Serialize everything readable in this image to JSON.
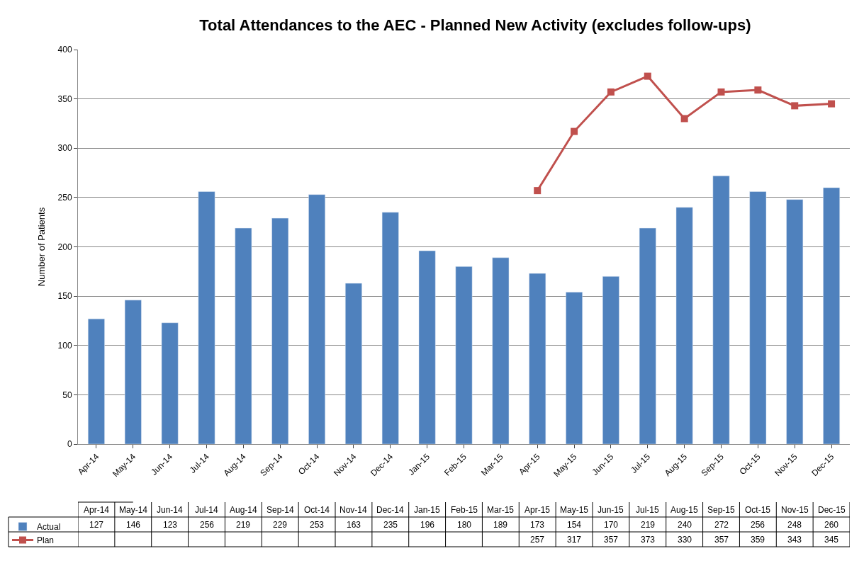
{
  "chart_data": {
    "type": "bar",
    "title": "Total Attendances to the AEC - Planned New Activity (excludes follow-ups)",
    "ylabel": "Number of Patients",
    "categories": [
      "Apr-14",
      "May-14",
      "Jun-14",
      "Jul-14",
      "Aug-14",
      "Sep-14",
      "Oct-14",
      "Nov-14",
      "Dec-14",
      "Jan-15",
      "Feb-15",
      "Mar-15",
      "Apr-15",
      "May-15",
      "Jun-15",
      "Jul-15",
      "Aug-15",
      "Sep-15",
      "Oct-15",
      "Nov-15",
      "Dec-15"
    ],
    "series": [
      {
        "name": "Actual",
        "color": "#4f81bd",
        "values": [
          127,
          146,
          123,
          256,
          219,
          229,
          253,
          163,
          235,
          196,
          180,
          189,
          173,
          154,
          170,
          219,
          240,
          272,
          256,
          248,
          260
        ]
      },
      {
        "name": "Plan",
        "type": "line",
        "color": "#c0504d",
        "marker": "square",
        "values": [
          null,
          null,
          null,
          null,
          null,
          null,
          null,
          null,
          null,
          null,
          null,
          null,
          257,
          317,
          357,
          373,
          330,
          357,
          359,
          343,
          345
        ]
      }
    ],
    "ylim": [
      0,
      400
    ],
    "yticks": [
      0,
      50,
      100,
      150,
      200,
      250,
      300,
      350,
      400
    ],
    "grid": "y",
    "legend": "bottom left",
    "data_labels": true
  }
}
